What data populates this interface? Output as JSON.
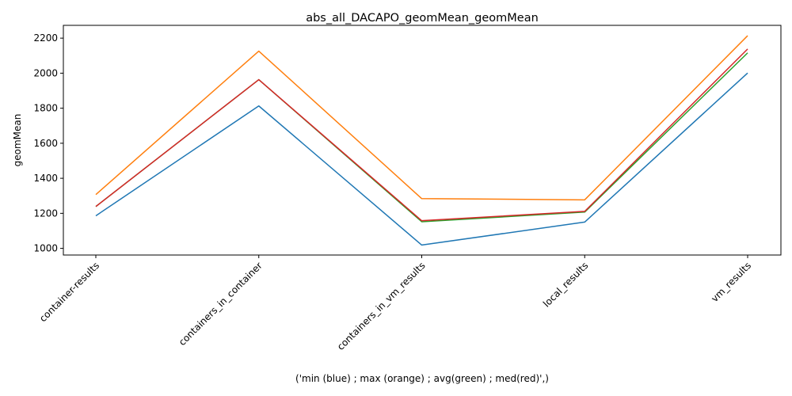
{
  "chart_data": {
    "type": "line",
    "title": "abs_all_DACAPO_geomMean_geomMean",
    "xlabel": "('min (blue) ; max (orange) ; avg(green) ; med(red)',)",
    "ylabel": "geomMean",
    "categories": [
      "container-results",
      "containers_in_container",
      "containers_in_vm_results",
      "local_results",
      "vm_results"
    ],
    "yticks": [
      1000,
      1200,
      1400,
      1600,
      1800,
      2000,
      2200
    ],
    "ylim": [
      962,
      2273
    ],
    "grid": false,
    "series": [
      {
        "color": "#1f77b4",
        "values": [
          1186,
          1813,
          1019,
          1150,
          2001
        ]
      },
      {
        "color": "#ff7f0e",
        "values": [
          1307,
          2126,
          1284,
          1277,
          2214
        ]
      },
      {
        "color": "#2ca02c",
        "values": [
          1239,
          1963,
          1152,
          1207,
          2116
        ]
      },
      {
        "color": "#d62728",
        "values": [
          1239,
          1963,
          1158,
          1211,
          2138
        ]
      }
    ]
  }
}
